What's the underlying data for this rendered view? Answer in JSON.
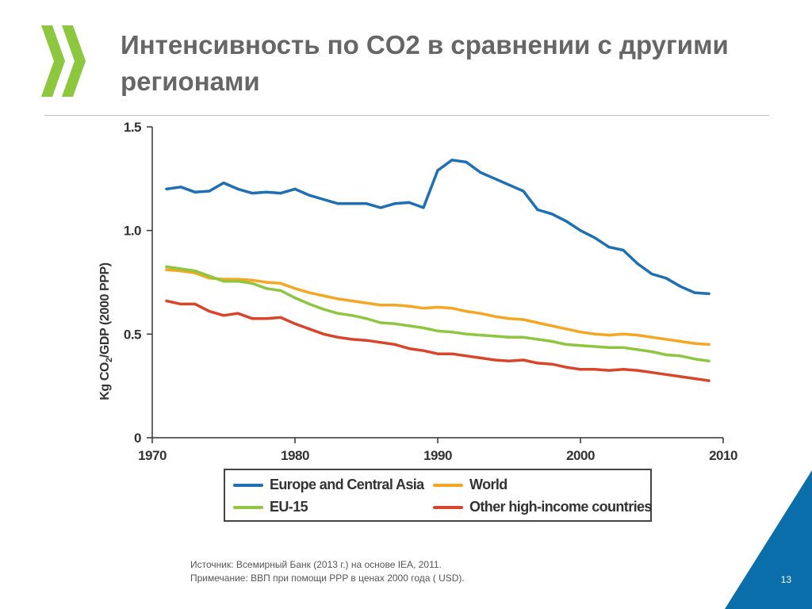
{
  "slide": {
    "title": "Интенсивность по CO2 в сравнении с другими регионами",
    "page_number": "13",
    "source_note": "Источник: Всемирный Банк (2013 г.) на основе IEA, 2011.",
    "remark_note": "Примечание: ВВП при помощи PPP в ценах 2000 года ( USD)."
  },
  "colors": {
    "title": "#666666",
    "logo_green": "#8dc63f",
    "corner_blue": "#0a6eab",
    "europe": "#1f6fb5",
    "world": "#f5a623",
    "eu15": "#8ec63f",
    "other": "#d9452b"
  },
  "chart_data": {
    "type": "line",
    "title": "",
    "xlabel": "",
    "ylabel": "Kg CO2/GDP (2000 PPP)",
    "xlim": [
      1970,
      2010
    ],
    "ylim": [
      0,
      1.5
    ],
    "x_ticks": [
      "1970",
      "1980",
      "1990",
      "2000",
      "2010"
    ],
    "y_ticks": [
      "0",
      "0.5",
      "1.0",
      "1.5"
    ],
    "grid": false,
    "legend_position": "bottom",
    "x": [
      1971,
      1972,
      1973,
      1974,
      1975,
      1976,
      1977,
      1978,
      1979,
      1980,
      1981,
      1982,
      1983,
      1984,
      1985,
      1986,
      1987,
      1988,
      1989,
      1990,
      1991,
      1992,
      1993,
      1994,
      1995,
      1996,
      1997,
      1998,
      1999,
      2000,
      2001,
      2002,
      2003,
      2004,
      2005,
      2006,
      2007,
      2008,
      2009
    ],
    "series": [
      {
        "name": "Europe and Central Asia",
        "color": "#1f6fb5",
        "values": [
          1.2,
          1.21,
          1.185,
          1.19,
          1.23,
          1.2,
          1.18,
          1.185,
          1.18,
          1.2,
          1.17,
          1.15,
          1.13,
          1.13,
          1.13,
          1.11,
          1.13,
          1.135,
          1.11,
          1.29,
          1.34,
          1.33,
          1.28,
          1.25,
          1.22,
          1.19,
          1.1,
          1.08,
          1.045,
          1.0,
          0.965,
          0.92,
          0.905,
          0.84,
          0.79,
          0.77,
          0.73,
          0.7,
          0.695
        ]
      },
      {
        "name": "World",
        "color": "#f5a623",
        "values": [
          0.81,
          0.805,
          0.795,
          0.77,
          0.765,
          0.765,
          0.76,
          0.75,
          0.745,
          0.72,
          0.7,
          0.685,
          0.67,
          0.66,
          0.65,
          0.64,
          0.64,
          0.635,
          0.625,
          0.63,
          0.625,
          0.61,
          0.6,
          0.585,
          0.575,
          0.57,
          0.555,
          0.54,
          0.525,
          0.51,
          0.5,
          0.495,
          0.5,
          0.495,
          0.485,
          0.475,
          0.465,
          0.455,
          0.45
        ]
      },
      {
        "name": "EU-15",
        "color": "#8ec63f",
        "values": [
          0.825,
          0.815,
          0.805,
          0.78,
          0.755,
          0.755,
          0.745,
          0.72,
          0.71,
          0.675,
          0.645,
          0.62,
          0.6,
          0.59,
          0.575,
          0.555,
          0.55,
          0.54,
          0.53,
          0.515,
          0.51,
          0.5,
          0.495,
          0.49,
          0.485,
          0.485,
          0.475,
          0.465,
          0.45,
          0.445,
          0.44,
          0.435,
          0.435,
          0.425,
          0.415,
          0.4,
          0.395,
          0.38,
          0.37
        ]
      },
      {
        "name": "Other high-income countries",
        "color": "#d9452b",
        "values": [
          0.66,
          0.645,
          0.645,
          0.61,
          0.59,
          0.6,
          0.575,
          0.575,
          0.58,
          0.55,
          0.525,
          0.5,
          0.485,
          0.475,
          0.47,
          0.46,
          0.45,
          0.43,
          0.42,
          0.405,
          0.405,
          0.395,
          0.385,
          0.375,
          0.37,
          0.375,
          0.36,
          0.355,
          0.34,
          0.33,
          0.33,
          0.325,
          0.33,
          0.325,
          0.315,
          0.305,
          0.295,
          0.285,
          0.275
        ]
      }
    ]
  }
}
